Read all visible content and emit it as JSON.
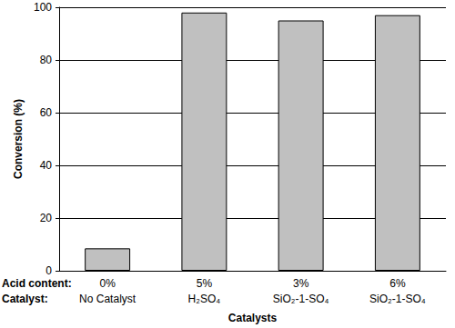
{
  "chart_data": {
    "type": "bar",
    "xlabel": "Catalysts",
    "ylabel": "Conversion (%)",
    "row_labels": [
      "Acid content:",
      "Catalyst:"
    ],
    "acid_content": [
      "0%",
      "5%",
      "3%",
      "6%"
    ],
    "categories": [
      "No Catalyst",
      "H₂SO₄",
      "SiO₂-1-SO₄",
      "SiO₂-1-SO₄"
    ],
    "values": [
      8.5,
      98,
      95,
      97
    ],
    "color": "#c0c0c0",
    "ylim": [
      0,
      100
    ],
    "yticks": [
      0,
      20,
      40,
      60,
      80,
      100
    ],
    "grid": true
  }
}
